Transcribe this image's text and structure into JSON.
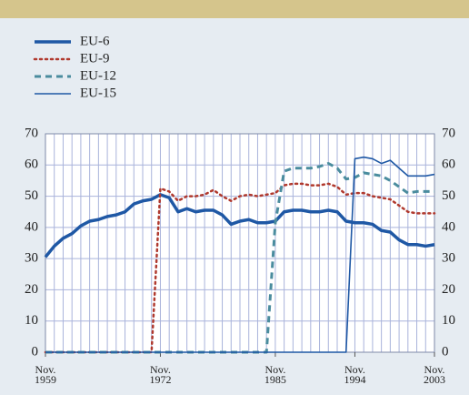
{
  "chart_data": {
    "type": "line",
    "x": [
      1959,
      1960,
      1961,
      1962,
      1963,
      1964,
      1965,
      1966,
      1967,
      1968,
      1969,
      1970,
      1971,
      1972,
      1973,
      1974,
      1975,
      1976,
      1977,
      1978,
      1979,
      1980,
      1981,
      1982,
      1983,
      1984,
      1985,
      1986,
      1987,
      1988,
      1989,
      1990,
      1991,
      1992,
      1993,
      1994,
      1995,
      1996,
      1997,
      1998,
      1999,
      2000,
      2001,
      2002,
      2003
    ],
    "xlim": [
      1959,
      2003
    ],
    "xticks": [
      {
        "value": 1959,
        "label": "Nov. 1959"
      },
      {
        "value": 1972,
        "label": "Nov. 1972"
      },
      {
        "value": 1985,
        "label": "Nov. 1985"
      },
      {
        "value": 1994,
        "label": "Nov. 1994"
      },
      {
        "value": 2003,
        "label": "Nov. 2003"
      }
    ],
    "ylim": [
      0,
      70
    ],
    "yticks": [
      0,
      10,
      20,
      30,
      40,
      50,
      60,
      70
    ],
    "y2lim": [
      0,
      70
    ],
    "y2ticks": [
      0,
      10,
      20,
      30,
      40,
      50,
      60,
      70
    ],
    "grid": true,
    "series": [
      {
        "name": "EU-6",
        "color": "#1f58a5",
        "width": 3.5,
        "dash": "solid",
        "values": [
          30.5,
          34,
          36.5,
          38,
          40.5,
          42,
          42.5,
          43.5,
          44,
          45,
          47.5,
          48.5,
          49,
          50.5,
          49.5,
          45,
          46,
          45,
          45.5,
          45.5,
          44,
          41,
          42,
          42.5,
          41.5,
          41.5,
          42,
          45,
          45.5,
          45.5,
          45,
          45,
          45.5,
          45,
          42,
          41.5,
          41.5,
          41,
          39,
          38.5,
          36,
          34.5,
          34.5,
          34,
          34.5
        ]
      },
      {
        "name": "EU-9",
        "color": "#b0392e",
        "width": 2.5,
        "dash": "dotted",
        "values": [
          0,
          0,
          0,
          0,
          0,
          0,
          0,
          0,
          0,
          0,
          0,
          0,
          0,
          52.5,
          51.5,
          48.5,
          50,
          50,
          50.5,
          52,
          50,
          48.5,
          50,
          50.5,
          50,
          50.5,
          51,
          53.5,
          54,
          54,
          53.5,
          53.5,
          54,
          53,
          50.5,
          51,
          51,
          50,
          49.5,
          49,
          47,
          45,
          44.5,
          44.5,
          44.5
        ]
      },
      {
        "name": "EU-12",
        "color": "#4a8c9e",
        "width": 3,
        "dash": "dashed",
        "values": [
          0,
          0,
          0,
          0,
          0,
          0,
          0,
          0,
          0,
          0,
          0,
          0,
          0,
          0,
          0,
          0,
          0,
          0,
          0,
          0,
          0,
          0,
          0,
          0,
          0,
          0,
          41.5,
          58,
          59,
          59,
          59,
          59.5,
          60.5,
          59,
          55.5,
          56,
          57.5,
          57,
          56.5,
          55,
          53,
          51,
          51.5,
          51.5,
          51.5
        ]
      },
      {
        "name": "EU-15",
        "color": "#1f58a5",
        "width": 1.6,
        "dash": "solid",
        "values": [
          0,
          0,
          0,
          0,
          0,
          0,
          0,
          0,
          0,
          0,
          0,
          0,
          0,
          0,
          0,
          0,
          0,
          0,
          0,
          0,
          0,
          0,
          0,
          0,
          0,
          0,
          0,
          0,
          0,
          0,
          0,
          0,
          0,
          0,
          0,
          62,
          62.5,
          62,
          60.5,
          61.5,
          59,
          56.5,
          56.5,
          56.5,
          57
        ]
      }
    ]
  }
}
